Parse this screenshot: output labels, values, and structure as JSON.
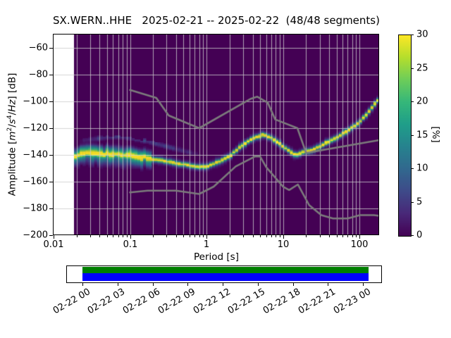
{
  "title": "SX.WERN..HHE   2025-02-21 -- 2025-02-22  (48/48 segments)",
  "axes": {
    "xlabel": "Period [s]",
    "ylabel": {
      "plain": "Amplitude [m²/s⁴/Hz] [dB]",
      "pre": "Amplitude [",
      "m": "m",
      "m_exp": "2",
      "sl1": "/",
      "s": "s",
      "s_exp": "4",
      "sl2": "/",
      "hz": "Hz",
      "post": "] [dB]"
    },
    "x_ticks": [
      "0.01",
      "0.1",
      "1",
      "10",
      "100"
    ],
    "x_tick_values": [
      0.01,
      0.1,
      1,
      10,
      100
    ],
    "y_ticks": [
      "−60",
      "−80",
      "−100",
      "−120",
      "−140",
      "−160",
      "−180",
      "−200"
    ],
    "y_tick_values": [
      -60,
      -80,
      -100,
      -120,
      -140,
      -160,
      -180,
      -200
    ],
    "x_scale": "log",
    "xlim": [
      0.01,
      180
    ],
    "ylim": [
      -200,
      -50
    ]
  },
  "colorbar": {
    "label": "[%]",
    "ticks": [
      "0",
      "5",
      "10",
      "15",
      "20",
      "25",
      "30"
    ],
    "tick_values": [
      0,
      5,
      10,
      15,
      20,
      25,
      30
    ],
    "min": 0,
    "max": 30,
    "colormap": "viridis"
  },
  "colors": {
    "histogram_background": "#440154",
    "histogram_peak": "#fde725",
    "grid": "#cbcbcb",
    "noise_model": "#7c7c7c",
    "coverage_green": "#007f00",
    "coverage_blue": "#0000ff",
    "figure_background": "#ffffff"
  },
  "timeline": {
    "tick_labels": [
      "02-22 00",
      "02-22 03",
      "02-22 06",
      "02-22 09",
      "02-22 12",
      "02-22 15",
      "02-22 18",
      "02-22 21",
      "02-23 00"
    ],
    "coverage_bars": [
      {
        "name": "data-coverage",
        "color": "#007f00"
      },
      {
        "name": "psd-segments",
        "color": "#0000ff"
      }
    ]
  },
  "chart_data": {
    "type": "heatmap",
    "subtype": "ppsd_probabilistic_power_spectral_density",
    "title": "SX.WERN..HHE   2025-02-21 -- 2025-02-22  (48/48 segments)",
    "xlabel": "Period [s]",
    "ylabel": "Amplitude [m²/s⁴/Hz] [dB]",
    "x_scale": "log",
    "xlim": [
      0.01,
      180
    ],
    "ylim": [
      -200,
      -50
    ],
    "grid": true,
    "probability_max_percent": 30,
    "histogram": {
      "period_range_s": [
        0.0185,
        180
      ],
      "period_step_octaves": 0.125,
      "db_bin_width": 1,
      "mode_line": {
        "periods_s": [
          0.0186,
          0.03,
          0.04,
          0.05,
          0.079,
          0.1,
          0.158,
          0.251,
          0.398,
          0.631,
          0.708,
          1.0,
          1.585,
          2.042,
          2.69,
          4.074,
          5.495,
          7.079,
          10.0,
          12.59,
          14.79,
          18.2,
          20.89,
          25.12,
          34.67,
          50.12,
          70.79,
          100.0,
          125.9,
          158.5,
          182.0
        ],
        "db": [
          -140.5,
          -138.8,
          -138.8,
          -139.3,
          -140.2,
          -140.8,
          -142.2,
          -144.0,
          -146.0,
          -147.9,
          -148.9,
          -148.8,
          -144.0,
          -140.5,
          -134.5,
          -127.5,
          -125.0,
          -127.2,
          -133.5,
          -138.0,
          -140.3,
          -138.0,
          -137.2,
          -136.0,
          -131.8,
          -127.0,
          -121.5,
          -115.5,
          -109.0,
          -102.0,
          -97.5
        ]
      },
      "secondary_faint_band": {
        "periods_s": [
          0.022,
          0.05,
          0.071,
          0.1,
          0.158,
          0.251,
          0.398,
          0.631,
          0.891
        ],
        "db": [
          -129.5,
          -126.8,
          -126.3,
          -127.5,
          -129.5,
          -132.5,
          -135.5,
          -138.5,
          -140.5
        ],
        "probability_percent": 5
      },
      "broadband_spread_below_period_s": 0.19
    },
    "noise_models": {
      "color": "#7c7c7c",
      "high_noise_model_NHNM": {
        "periods_s": [
          0.1,
          0.22,
          0.32,
          0.8,
          3.8,
          4.6,
          6.3,
          7.9,
          15.4,
          20.0,
          354.8
        ],
        "db": [
          -91.5,
          -97.4,
          -110.5,
          -120.0,
          -98.0,
          -96.5,
          -101.0,
          -113.5,
          -120.0,
          -138.5,
          -126.0
        ]
      },
      "low_noise_model_NLNM": {
        "periods_s": [
          0.1,
          0.17,
          0.4,
          0.8,
          1.24,
          2.4,
          4.3,
          5.0,
          6.0,
          10.0,
          12.0,
          15.6,
          21.9,
          31.6,
          45.0,
          70.0,
          101.0,
          154.0,
          328.0
        ],
        "db": [
          -168.0,
          -166.7,
          -166.7,
          -169.2,
          -163.7,
          -148.6,
          -141.1,
          -141.1,
          -149.0,
          -163.8,
          -166.2,
          -162.1,
          -177.5,
          -185.0,
          -187.5,
          -187.5,
          -185.0,
          -185.0,
          -187.5
        ]
      }
    },
    "colorbar": {
      "label": "[%]",
      "min": 0,
      "max": 30,
      "ticks": [
        0,
        5,
        10,
        15,
        20,
        25,
        30
      ],
      "colormap": "viridis"
    },
    "coverage_timeline": {
      "tick_labels": [
        "02-22 00",
        "02-22 03",
        "02-22 06",
        "02-22 09",
        "02-22 12",
        "02-22 15",
        "02-22 18",
        "02-22 21",
        "02-23 00"
      ],
      "tick_interval_hours": 3,
      "bars": [
        {
          "name": "data-coverage",
          "color": "#007f00",
          "extent": "full"
        },
        {
          "name": "psd-segments",
          "color": "#0000ff",
          "extent": "full"
        }
      ]
    }
  }
}
